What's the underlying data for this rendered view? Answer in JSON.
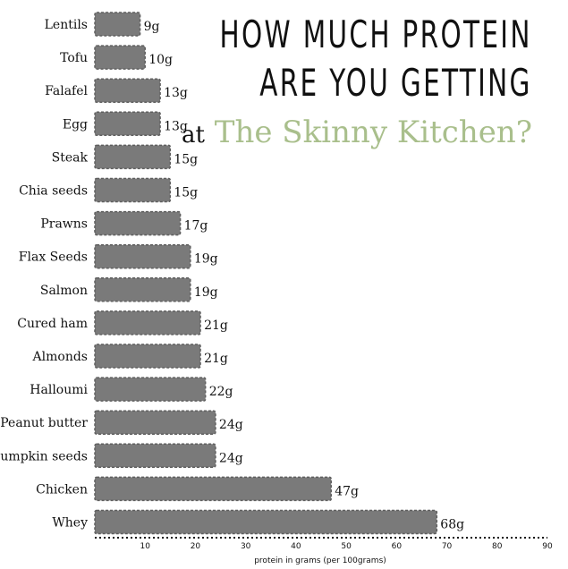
{
  "title": {
    "line1": "HOW MUCH PROTEIN",
    "line2": "ARE YOU GETTING",
    "at": "at",
    "brand": "The Skinny Kitchen",
    "question_mark": "?"
  },
  "colors": {
    "bar": "#7a7a7a",
    "bar_edge": "#5f5f5f",
    "brand": "#a9bf8c",
    "text": "#111111"
  },
  "chart_data": {
    "type": "bar",
    "orientation": "horizontal",
    "categories": [
      "Lentils",
      "Tofu",
      "Falafel",
      "Egg",
      "Steak",
      "Chia seeds",
      "Prawns",
      "Flax Seeds",
      "Salmon",
      "Cured ham",
      "Almonds",
      "Halloumi",
      "Peanut butter",
      "Pumpkin seeds",
      "Chicken",
      "Whey"
    ],
    "values": [
      9,
      10,
      13,
      13,
      15,
      15,
      17,
      19,
      19,
      21,
      21,
      22,
      24,
      24,
      47,
      68
    ],
    "value_labels": [
      "9g",
      "10g",
      "13g",
      "13g",
      "15g",
      "15g",
      "17g",
      "19g",
      "19g",
      "21g",
      "21g",
      "22g",
      "24g",
      "24g",
      "47g",
      "68g"
    ],
    "xlabel": "protein in grams (per 100grams)",
    "xlim": [
      0,
      90
    ],
    "xticks": [
      10,
      20,
      30,
      40,
      50,
      60,
      70,
      80,
      90
    ],
    "xtick_labels": [
      "10",
      "20",
      "30",
      "40",
      "50",
      "60",
      "70",
      "80",
      "90"
    ],
    "grid": false,
    "legend": "none"
  }
}
